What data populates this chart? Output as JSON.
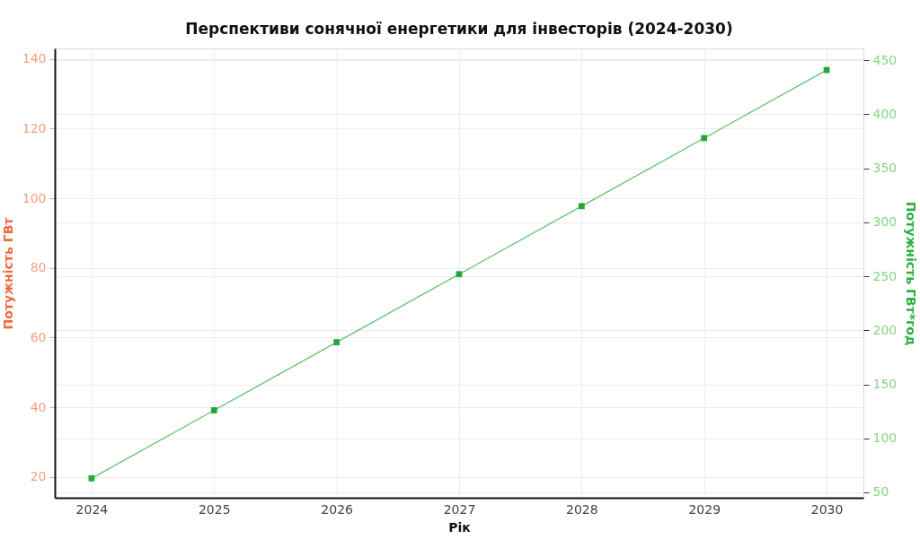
{
  "chart_data": {
    "type": "line",
    "title": "Перспективи сонячної енергетики для інвесторів (2024-2030)",
    "xlabel": "Рік",
    "ylabel": "Потужність ГВт",
    "y2label": "Потужність ГВт*год",
    "x": [
      2024,
      2025,
      2026,
      2027,
      2028,
      2029,
      2030
    ],
    "series": [
      {
        "color": "#22a838",
        "values": [
          63,
          126,
          189,
          252,
          315,
          378,
          441
        ],
        "axis": "y2"
      }
    ],
    "xlim": [
      2023.7,
      2030.3
    ],
    "xticks": [
      2024,
      2025,
      2026,
      2027,
      2028,
      2029,
      2030
    ],
    "ylim": [
      14,
      143
    ],
    "yticks": [
      20,
      40,
      60,
      80,
      100,
      120,
      140
    ],
    "y2lim": [
      45,
      461
    ],
    "y2ticks": [
      50,
      100,
      150,
      200,
      250,
      300,
      350,
      400,
      450
    ],
    "grid": true,
    "marker": "square",
    "line_style": "solid"
  }
}
